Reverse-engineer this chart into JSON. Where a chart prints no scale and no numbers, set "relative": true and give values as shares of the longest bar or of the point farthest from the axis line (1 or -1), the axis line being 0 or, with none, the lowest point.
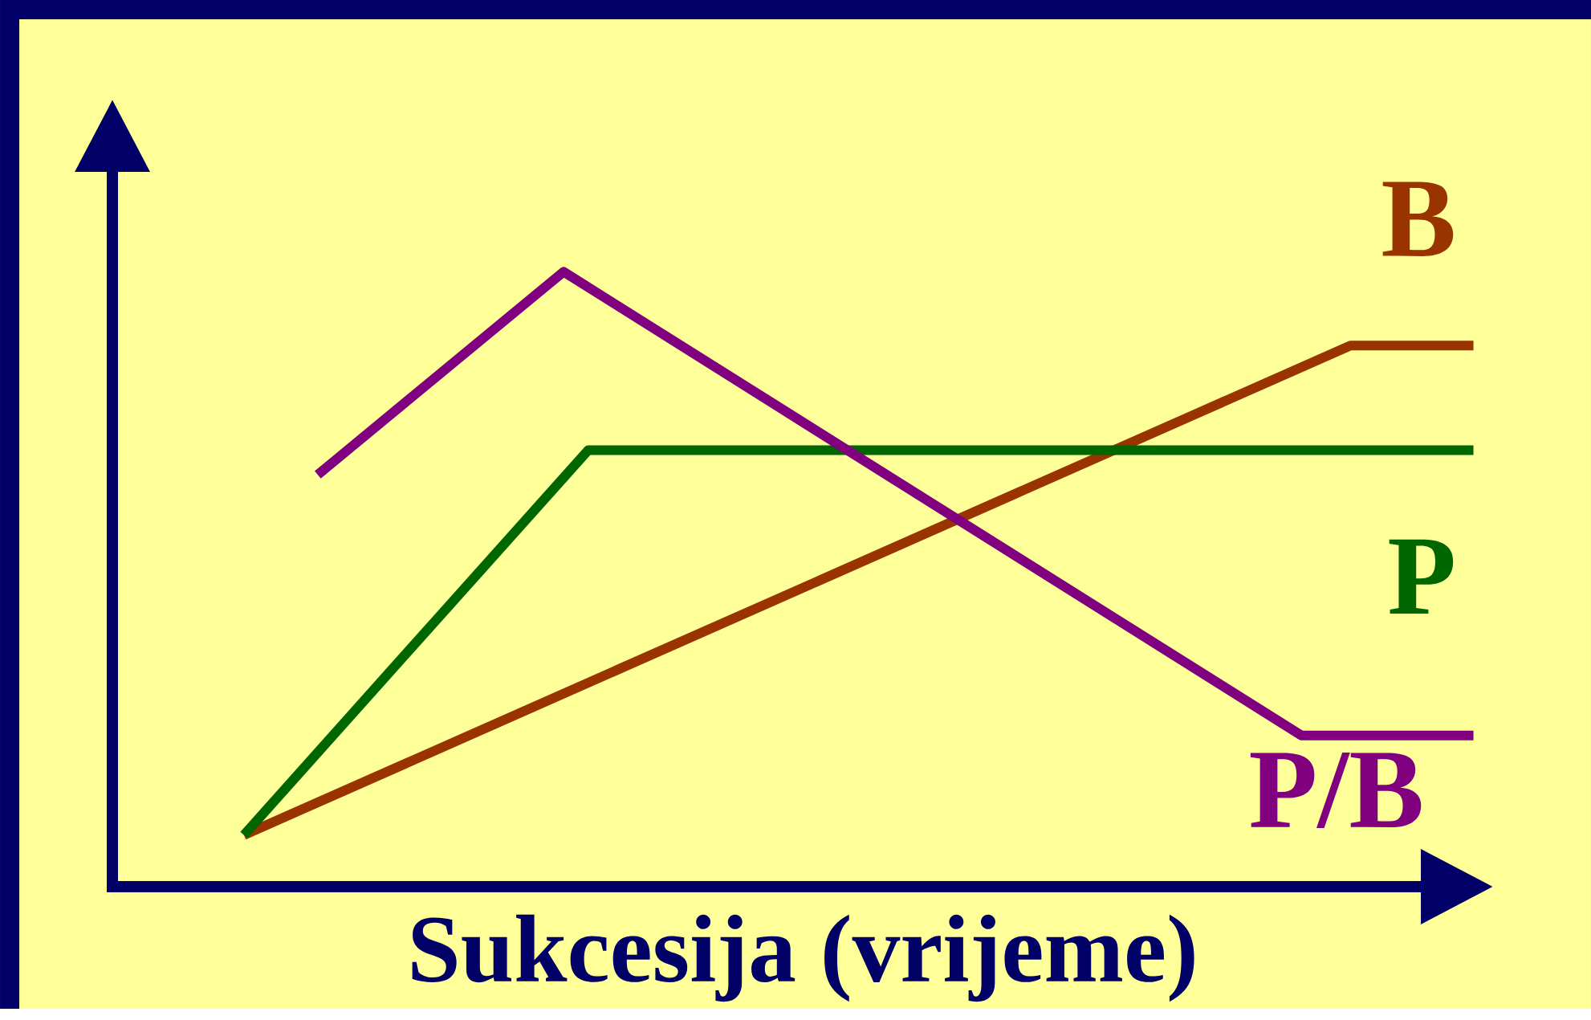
{
  "chart_data": {
    "type": "line",
    "relative": true,
    "xlabel": "Sukcesija (vrijeme)",
    "categories": [
      null,
      null,
      null,
      null,
      null,
      null,
      null,
      null,
      null,
      null,
      null,
      null,
      null,
      null,
      null,
      null,
      null,
      null,
      null,
      null,
      null,
      null,
      null,
      null,
      null,
      null,
      null,
      null,
      null,
      null,
      null,
      null,
      null,
      null,
      null,
      null,
      null,
      null,
      null,
      null,
      null,
      null,
      null,
      null,
      null,
      null,
      null,
      null,
      null,
      null,
      null
    ],
    "series": [
      {
        "name": "B",
        "color": "#993300",
        "values": [
          0.084,
          null,
          null,
          null,
          null,
          null,
          null,
          null,
          null,
          null,
          null,
          null,
          null,
          null,
          null,
          null,
          null,
          null,
          null,
          null,
          null,
          null,
          null,
          null,
          null,
          null,
          null,
          null,
          null,
          null,
          null,
          null,
          null,
          null,
          null,
          null,
          null,
          null,
          null,
          null,
          null,
          null,
          null,
          null,
          null,
          0.88,
          null,
          null,
          null,
          null,
          0.88
        ]
      },
      {
        "name": "P",
        "color": "#006600",
        "values": [
          0.084,
          null,
          null,
          null,
          null,
          null,
          null,
          null,
          null,
          null,
          null,
          null,
          null,
          null,
          0.71,
          null,
          null,
          null,
          null,
          null,
          null,
          null,
          null,
          null,
          null,
          null,
          null,
          null,
          null,
          null,
          null,
          null,
          null,
          null,
          null,
          null,
          null,
          null,
          null,
          null,
          null,
          null,
          null,
          null,
          null,
          null,
          null,
          null,
          null,
          null,
          0.71
        ]
      },
      {
        "name": "P/B",
        "color": "#800080",
        "values": [
          null,
          null,
          null,
          0.67,
          null,
          null,
          null,
          null,
          null,
          null,
          null,
          null,
          null,
          1.0,
          null,
          null,
          null,
          null,
          null,
          null,
          null,
          null,
          null,
          null,
          null,
          null,
          null,
          null,
          null,
          null,
          null,
          null,
          null,
          null,
          null,
          null,
          null,
          null,
          null,
          null,
          null,
          null,
          null,
          0.246,
          null,
          null,
          null,
          null,
          null,
          null,
          0.246
        ]
      }
    ],
    "legend": false,
    "marker": "none",
    "line_style": "solid"
  }
}
